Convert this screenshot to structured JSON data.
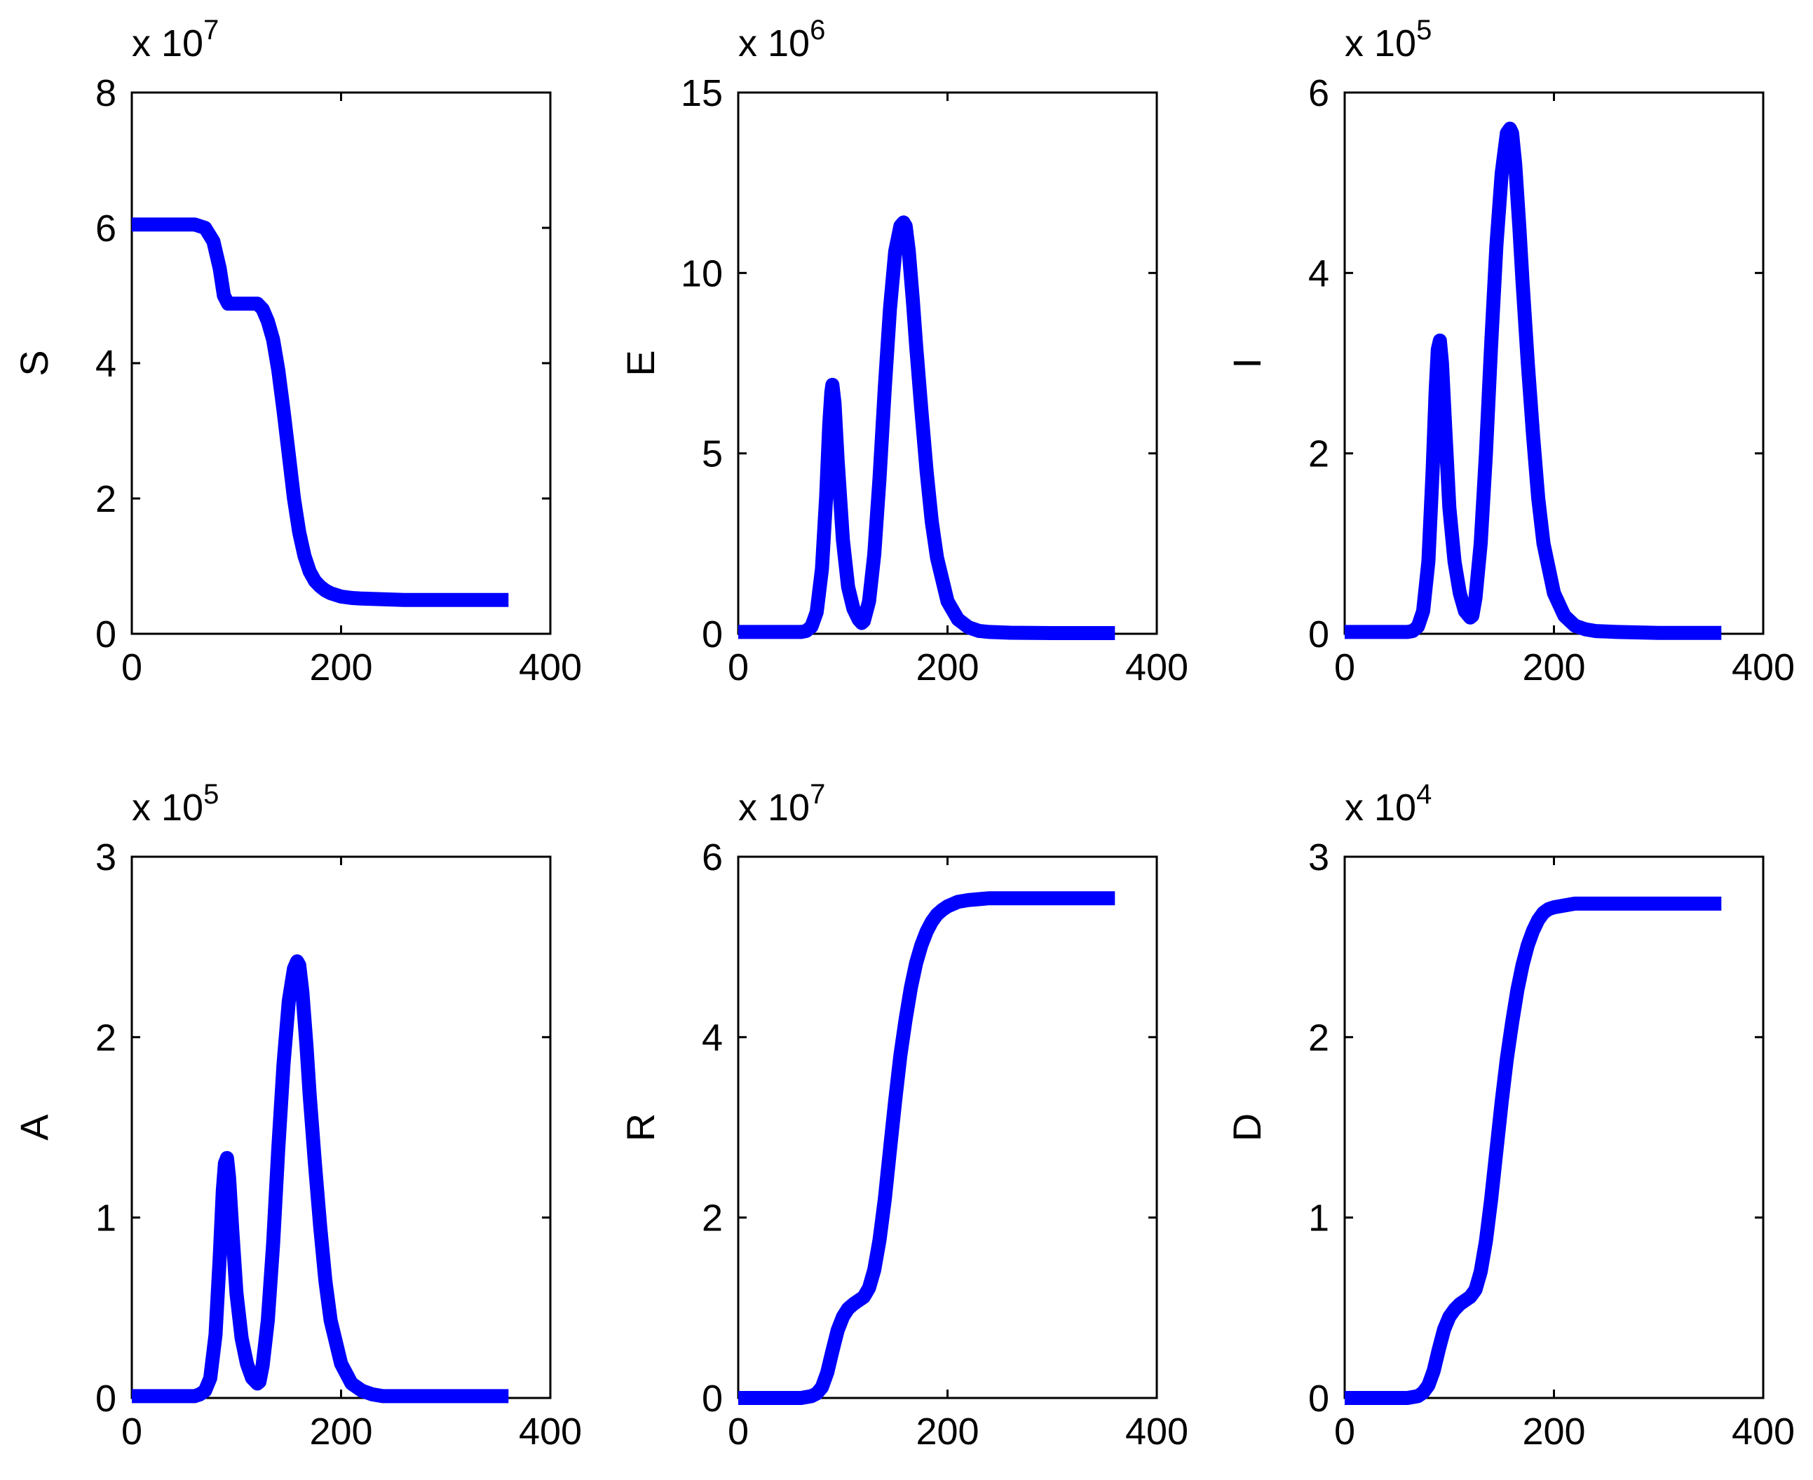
{
  "figure": {
    "line_color": "#0000ff",
    "axis_color": "#000000"
  },
  "chart_data": [
    {
      "type": "line",
      "ylabel": "S",
      "exponent_text": "x 10",
      "exponent_power": "7",
      "xlim": [
        0,
        400
      ],
      "ylim": [
        0,
        8
      ],
      "xticks": [
        0,
        200,
        400
      ],
      "xtick_labels": [
        "0",
        "200",
        "400"
      ],
      "yticks": [
        0,
        2,
        4,
        6,
        8
      ],
      "ytick_labels": [
        "0",
        "2",
        "4",
        "6",
        "8"
      ],
      "series": [
        {
          "name": "S",
          "x": [
            0,
            30,
            60,
            70,
            78,
            84,
            88,
            92,
            100,
            110,
            120,
            125,
            130,
            135,
            140,
            145,
            150,
            155,
            160,
            165,
            170,
            175,
            180,
            185,
            190,
            200,
            210,
            220,
            240,
            260,
            300,
            360
          ],
          "y": [
            6.05,
            6.05,
            6.05,
            6.0,
            5.8,
            5.4,
            5.0,
            4.88,
            4.88,
            4.88,
            4.88,
            4.8,
            4.62,
            4.35,
            3.9,
            3.3,
            2.65,
            2.0,
            1.5,
            1.15,
            0.92,
            0.78,
            0.7,
            0.64,
            0.6,
            0.55,
            0.53,
            0.52,
            0.51,
            0.5,
            0.5,
            0.5
          ]
        }
      ]
    },
    {
      "type": "line",
      "ylabel": "E",
      "exponent_text": "x 10",
      "exponent_power": "6",
      "xlim": [
        0,
        400
      ],
      "ylim": [
        0,
        15
      ],
      "xticks": [
        0,
        200,
        400
      ],
      "xtick_labels": [
        "0",
        "200",
        "400"
      ],
      "yticks": [
        0,
        5,
        10,
        15
      ],
      "ytick_labels": [
        "0",
        "5",
        "10",
        "15"
      ],
      "series": [
        {
          "name": "E",
          "x": [
            0,
            50,
            60,
            65,
            70,
            75,
            80,
            84,
            87,
            89,
            90,
            92,
            95,
            100,
            105,
            110,
            115,
            118,
            120,
            125,
            130,
            135,
            140,
            145,
            150,
            155,
            158,
            160,
            163,
            167,
            170,
            175,
            180,
            185,
            190,
            200,
            210,
            220,
            230,
            240,
            260,
            300,
            360
          ],
          "y": [
            0.05,
            0.05,
            0.05,
            0.08,
            0.2,
            0.6,
            1.8,
            3.8,
            5.8,
            6.7,
            6.9,
            6.4,
            4.8,
            2.6,
            1.3,
            0.7,
            0.4,
            0.3,
            0.35,
            0.9,
            2.2,
            4.3,
            6.8,
            9.0,
            10.6,
            11.3,
            11.4,
            11.3,
            10.6,
            9.2,
            8.0,
            6.2,
            4.5,
            3.1,
            2.1,
            0.9,
            0.4,
            0.18,
            0.08,
            0.05,
            0.03,
            0.02,
            0.02
          ]
        }
      ]
    },
    {
      "type": "line",
      "ylabel": "I",
      "exponent_text": "x 10",
      "exponent_power": "5",
      "xlim": [
        0,
        400
      ],
      "ylim": [
        0,
        6
      ],
      "xticks": [
        0,
        200,
        400
      ],
      "xtick_labels": [
        "0",
        "200",
        "400"
      ],
      "yticks": [
        0,
        2,
        4,
        6
      ],
      "ytick_labels": [
        "0",
        "2",
        "4",
        "6"
      ],
      "series": [
        {
          "name": "I",
          "x": [
            0,
            50,
            60,
            65,
            70,
            75,
            80,
            84,
            87,
            89,
            91,
            93,
            96,
            100,
            105,
            110,
            115,
            120,
            122,
            125,
            130,
            135,
            140,
            145,
            150,
            155,
            158,
            160,
            163,
            167,
            170,
            175,
            180,
            185,
            190,
            200,
            210,
            220,
            230,
            240,
            260,
            300,
            360
          ],
          "y": [
            0.02,
            0.02,
            0.02,
            0.03,
            0.08,
            0.25,
            0.8,
            1.8,
            2.7,
            3.15,
            3.25,
            3.0,
            2.3,
            1.4,
            0.8,
            0.45,
            0.25,
            0.18,
            0.2,
            0.4,
            1.0,
            2.0,
            3.2,
            4.3,
            5.1,
            5.55,
            5.6,
            5.55,
            5.2,
            4.5,
            3.9,
            3.0,
            2.2,
            1.5,
            1.0,
            0.45,
            0.2,
            0.09,
            0.05,
            0.03,
            0.02,
            0.01,
            0.01
          ]
        }
      ]
    },
    {
      "type": "line",
      "ylabel": "A",
      "exponent_text": "x 10",
      "exponent_power": "5",
      "xlim": [
        0,
        400
      ],
      "ylim": [
        0,
        3
      ],
      "xticks": [
        0,
        200,
        400
      ],
      "xtick_labels": [
        "0",
        "200",
        "400"
      ],
      "yticks": [
        0,
        1,
        2,
        3
      ],
      "ytick_labels": [
        "0",
        "1",
        "2",
        "3"
      ],
      "series": [
        {
          "name": "A",
          "x": [
            0,
            50,
            60,
            65,
            70,
            75,
            80,
            84,
            87,
            89,
            91,
            93,
            96,
            100,
            105,
            110,
            115,
            120,
            122,
            125,
            130,
            135,
            140,
            145,
            150,
            155,
            158,
            160,
            163,
            167,
            170,
            175,
            180,
            185,
            190,
            200,
            210,
            220,
            230,
            240,
            260,
            300,
            360
          ],
          "y": [
            0.01,
            0.01,
            0.01,
            0.02,
            0.04,
            0.11,
            0.35,
            0.78,
            1.15,
            1.3,
            1.33,
            1.22,
            0.93,
            0.58,
            0.33,
            0.19,
            0.11,
            0.08,
            0.09,
            0.18,
            0.43,
            0.85,
            1.38,
            1.85,
            2.2,
            2.38,
            2.42,
            2.4,
            2.25,
            1.95,
            1.68,
            1.3,
            0.95,
            0.65,
            0.43,
            0.19,
            0.08,
            0.04,
            0.02,
            0.01,
            0.01,
            0.01,
            0.01
          ]
        }
      ]
    },
    {
      "type": "line",
      "ylabel": "R",
      "exponent_text": "x 10",
      "exponent_power": "7",
      "xlim": [
        0,
        400
      ],
      "ylim": [
        0,
        6
      ],
      "xticks": [
        0,
        200,
        400
      ],
      "xtick_labels": [
        "0",
        "200",
        "400"
      ],
      "yticks": [
        0,
        2,
        4,
        6
      ],
      "ytick_labels": [
        "0",
        "2",
        "4",
        "6"
      ],
      "series": [
        {
          "name": "R",
          "x": [
            0,
            50,
            60,
            70,
            75,
            80,
            85,
            90,
            95,
            100,
            105,
            110,
            115,
            120,
            125,
            130,
            135,
            140,
            145,
            150,
            155,
            160,
            165,
            170,
            175,
            180,
            185,
            190,
            195,
            200,
            210,
            220,
            230,
            240,
            260,
            300,
            360
          ],
          "y": [
            0.0,
            0.0,
            0.0,
            0.02,
            0.05,
            0.12,
            0.28,
            0.52,
            0.75,
            0.9,
            0.99,
            1.04,
            1.08,
            1.12,
            1.22,
            1.42,
            1.75,
            2.2,
            2.75,
            3.3,
            3.8,
            4.2,
            4.55,
            4.82,
            5.02,
            5.17,
            5.28,
            5.36,
            5.41,
            5.45,
            5.5,
            5.52,
            5.53,
            5.54,
            5.54,
            5.54,
            5.54
          ]
        }
      ]
    },
    {
      "type": "line",
      "ylabel": "D",
      "exponent_text": "x 10",
      "exponent_power": "4",
      "xlim": [
        0,
        400
      ],
      "ylim": [
        0,
        3
      ],
      "xticks": [
        0,
        200,
        400
      ],
      "xtick_labels": [
        "0",
        "200",
        "400"
      ],
      "yticks": [
        0,
        1,
        2,
        3
      ],
      "ytick_labels": [
        "0",
        "1",
        "2",
        "3"
      ],
      "series": [
        {
          "name": "D",
          "x": [
            0,
            50,
            60,
            70,
            75,
            80,
            85,
            90,
            95,
            100,
            105,
            110,
            115,
            120,
            125,
            130,
            135,
            140,
            145,
            150,
            155,
            160,
            165,
            170,
            175,
            180,
            185,
            190,
            195,
            200,
            210,
            220,
            230,
            240,
            260,
            300,
            360
          ],
          "y": [
            0.0,
            0.0,
            0.0,
            0.01,
            0.03,
            0.07,
            0.15,
            0.27,
            0.38,
            0.45,
            0.49,
            0.52,
            0.54,
            0.56,
            0.6,
            0.7,
            0.87,
            1.1,
            1.37,
            1.64,
            1.88,
            2.08,
            2.26,
            2.4,
            2.51,
            2.59,
            2.65,
            2.69,
            2.71,
            2.72,
            2.73,
            2.74,
            2.74,
            2.74,
            2.74,
            2.74,
            2.74
          ]
        }
      ]
    }
  ]
}
